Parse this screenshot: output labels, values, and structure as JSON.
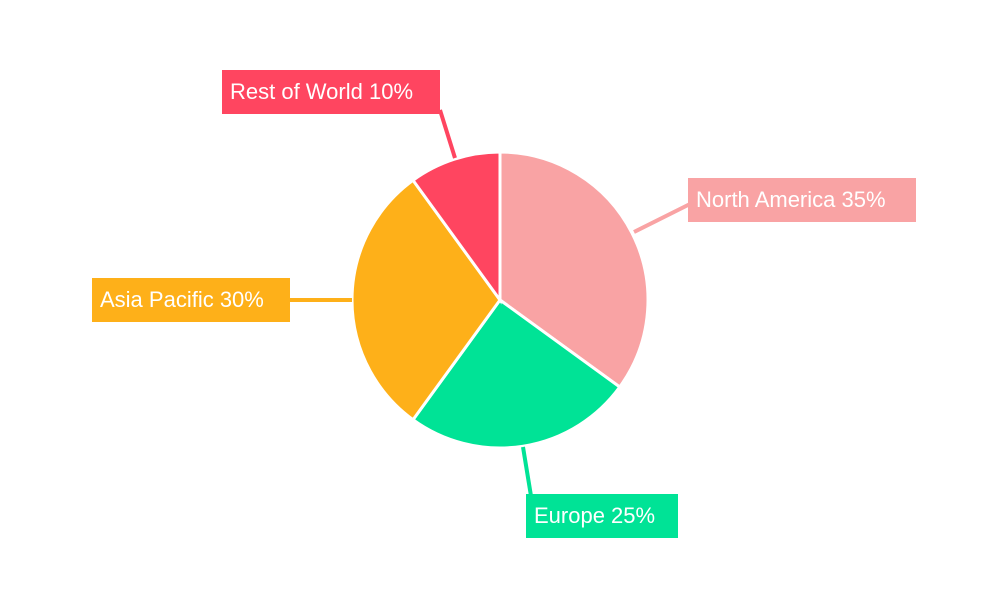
{
  "chart_data": {
    "type": "pie",
    "title": "",
    "start": "top",
    "direction": "clockwise",
    "slices": [
      {
        "label": "North America 35%",
        "name": "North America",
        "value": 35,
        "color": "#f9a3a4"
      },
      {
        "label": "Europe 25%",
        "name": "Europe",
        "value": 25,
        "color": "#00e396"
      },
      {
        "label": "Asia Pacific 30%",
        "name": "Asia Pacific",
        "value": 30,
        "color": "#feb019"
      },
      {
        "label": "Rest of World 10%",
        "name": "Rest of World",
        "value": 10,
        "color": "#ff4560"
      }
    ],
    "legend": "none"
  }
}
